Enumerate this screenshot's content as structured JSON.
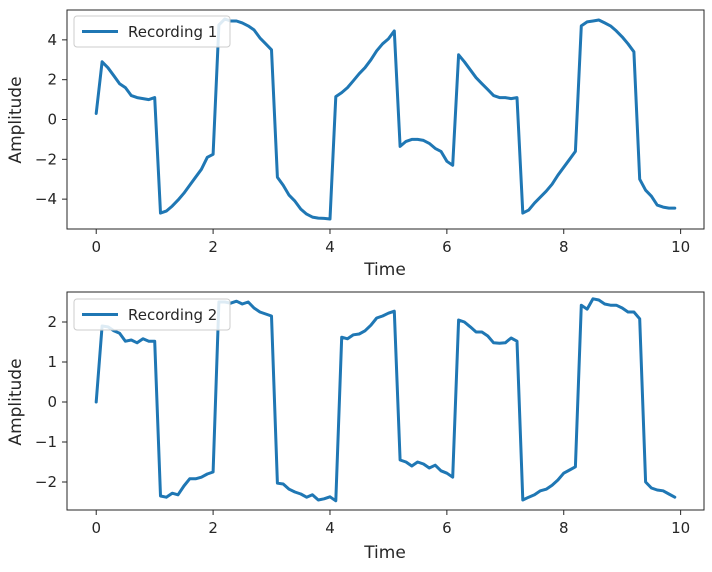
{
  "colors": {
    "series": "#1f77b4",
    "axes": "#262626"
  },
  "chart_data": [
    {
      "type": "line",
      "xlabel": "Time",
      "ylabel": "Amplitude",
      "xlim": [
        -0.5,
        10.4
      ],
      "ylim": [
        -5.5,
        5.5
      ],
      "xticks": [
        0,
        2,
        4,
        6,
        8,
        10
      ],
      "xtick_labels": [
        "0",
        "2",
        "4",
        "6",
        "8",
        "10"
      ],
      "yticks": [
        -4,
        -2,
        0,
        2,
        4
      ],
      "ytick_labels": [
        "−4",
        "−2",
        "0",
        "2",
        "4"
      ],
      "legend": "top-left",
      "grid": false,
      "series": [
        {
          "name": "Recording 1",
          "x": [
            0,
            0.1,
            0.2,
            0.3,
            0.4,
            0.5,
            0.6,
            0.7,
            0.8,
            0.9,
            1.0,
            1.1,
            1.2,
            1.3,
            1.4,
            1.5,
            1.6,
            1.7,
            1.8,
            1.9,
            2.0,
            2.1,
            2.2,
            2.3,
            2.4,
            2.5,
            2.6,
            2.7,
            2.8,
            2.9,
            3.0,
            3.1,
            3.2,
            3.3,
            3.4,
            3.5,
            3.6,
            3.7,
            3.8,
            3.9,
            4.0,
            4.1,
            4.2,
            4.3,
            4.4,
            4.5,
            4.6,
            4.7,
            4.8,
            4.9,
            5.0,
            5.1,
            5.2,
            5.3,
            5.4,
            5.5,
            5.6,
            5.7,
            5.8,
            5.9,
            6.0,
            6.1,
            6.2,
            6.3,
            6.4,
            6.5,
            6.6,
            6.7,
            6.8,
            6.9,
            7.0,
            7.1,
            7.2,
            7.3,
            7.4,
            7.5,
            7.6,
            7.7,
            7.8,
            7.9,
            8.0,
            8.1,
            8.2,
            8.3,
            8.4,
            8.5,
            8.6,
            8.7,
            8.8,
            8.9,
            9.0,
            9.1,
            9.2,
            9.3,
            9.4,
            9.5,
            9.6,
            9.7,
            9.8,
            9.9
          ],
          "y": [
            0.3,
            2.9,
            2.6,
            2.2,
            1.8,
            1.6,
            1.2,
            1.1,
            1.05,
            1.0,
            1.1,
            -4.7,
            -4.6,
            -4.35,
            -4.05,
            -3.7,
            -3.3,
            -2.9,
            -2.5,
            -1.9,
            -1.75,
            4.75,
            5.05,
            4.95,
            4.95,
            4.85,
            4.7,
            4.5,
            4.1,
            3.8,
            3.5,
            -2.9,
            -3.3,
            -3.8,
            -4.1,
            -4.5,
            -4.75,
            -4.9,
            -4.95,
            -4.97,
            -5.0,
            1.15,
            1.35,
            1.6,
            1.95,
            2.3,
            2.6,
            3.0,
            3.45,
            3.8,
            4.05,
            4.45,
            -1.35,
            -1.1,
            -1.0,
            -1.0,
            -1.05,
            -1.2,
            -1.45,
            -1.6,
            -2.1,
            -2.3,
            3.25,
            2.9,
            2.5,
            2.1,
            1.8,
            1.5,
            1.2,
            1.1,
            1.1,
            1.05,
            1.1,
            -4.7,
            -4.55,
            -4.2,
            -3.9,
            -3.6,
            -3.25,
            -2.8,
            -2.4,
            -2.0,
            -1.6,
            4.7,
            4.9,
            4.95,
            5.0,
            4.85,
            4.7,
            4.45,
            4.15,
            3.8,
            3.4,
            -3.0,
            -3.55,
            -3.85,
            -4.3,
            -4.4,
            -4.45,
            -4.45
          ]
        }
      ]
    },
    {
      "type": "line",
      "xlabel": "Time",
      "ylabel": "Amplitude",
      "xlim": [
        -0.5,
        10.4
      ],
      "ylim": [
        -2.7,
        2.75
      ],
      "xticks": [
        0,
        2,
        4,
        6,
        8,
        10
      ],
      "xtick_labels": [
        "0",
        "2",
        "4",
        "6",
        "8",
        "10"
      ],
      "yticks": [
        -2,
        -1,
        0,
        1,
        2
      ],
      "ytick_labels": [
        "−2",
        "−1",
        "0",
        "1",
        "2"
      ],
      "legend": "top-left",
      "grid": false,
      "series": [
        {
          "name": "Recording 2",
          "x": [
            0,
            0.1,
            0.2,
            0.3,
            0.4,
            0.5,
            0.6,
            0.7,
            0.8,
            0.9,
            1.0,
            1.1,
            1.2,
            1.3,
            1.4,
            1.5,
            1.6,
            1.7,
            1.8,
            1.9,
            2.0,
            2.1,
            2.2,
            2.3,
            2.4,
            2.5,
            2.6,
            2.7,
            2.8,
            2.9,
            3.0,
            3.1,
            3.2,
            3.3,
            3.4,
            3.5,
            3.6,
            3.7,
            3.8,
            3.9,
            4.0,
            4.1,
            4.2,
            4.3,
            4.4,
            4.5,
            4.6,
            4.7,
            4.8,
            4.9,
            5.0,
            5.1,
            5.2,
            5.3,
            5.4,
            5.5,
            5.6,
            5.7,
            5.8,
            5.9,
            6.0,
            6.1,
            6.2,
            6.3,
            6.4,
            6.5,
            6.6,
            6.7,
            6.8,
            6.9,
            7.0,
            7.1,
            7.2,
            7.3,
            7.4,
            7.5,
            7.6,
            7.7,
            7.8,
            7.9,
            8.0,
            8.1,
            8.2,
            8.3,
            8.4,
            8.5,
            8.6,
            8.7,
            8.8,
            8.9,
            9.0,
            9.1,
            9.2,
            9.3,
            9.4,
            9.5,
            9.6,
            9.7,
            9.8,
            9.9
          ],
          "y": [
            0.0,
            1.9,
            1.88,
            1.78,
            1.72,
            1.52,
            1.55,
            1.48,
            1.58,
            1.52,
            1.52,
            -2.35,
            -2.38,
            -2.28,
            -2.32,
            -2.1,
            -1.92,
            -1.92,
            -1.88,
            -1.8,
            -1.75,
            2.5,
            2.5,
            2.47,
            2.52,
            2.45,
            2.5,
            2.35,
            2.25,
            2.2,
            2.15,
            -2.03,
            -2.05,
            -2.18,
            -2.25,
            -2.3,
            -2.38,
            -2.32,
            -2.45,
            -2.42,
            -2.37,
            -2.47,
            1.62,
            1.58,
            1.68,
            1.7,
            1.78,
            1.92,
            2.1,
            2.15,
            2.22,
            2.27,
            -1.45,
            -1.5,
            -1.6,
            -1.5,
            -1.55,
            -1.65,
            -1.58,
            -1.72,
            -1.78,
            -1.88,
            2.05,
            2.0,
            1.88,
            1.75,
            1.75,
            1.65,
            1.48,
            1.47,
            1.48,
            1.6,
            1.52,
            -2.45,
            -2.38,
            -2.32,
            -2.22,
            -2.18,
            -2.08,
            -1.95,
            -1.78,
            -1.7,
            -1.62,
            2.42,
            2.32,
            2.58,
            2.55,
            2.45,
            2.42,
            2.42,
            2.35,
            2.25,
            2.25,
            2.08,
            -2.0,
            -2.15,
            -2.2,
            -2.22,
            -2.3,
            -2.38
          ]
        }
      ]
    }
  ]
}
